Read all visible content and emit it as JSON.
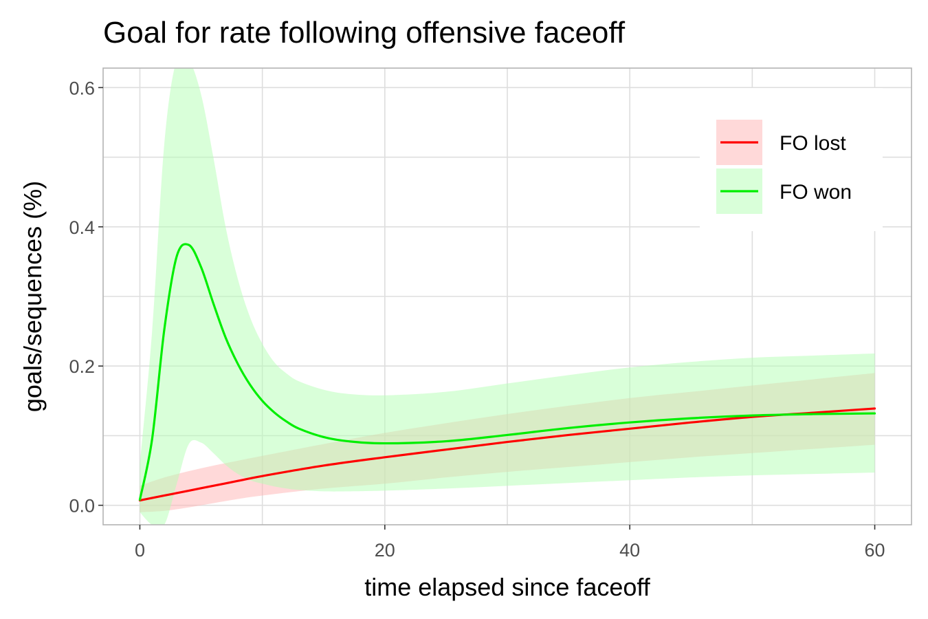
{
  "chart_data": {
    "type": "line",
    "title": "Goal for rate following offensive faceoff",
    "xlabel": "time elapsed since faceoff",
    "ylabel": "goals/sequences (%)",
    "xlim": [
      -3,
      63
    ],
    "ylim": [
      -0.028,
      0.628
    ],
    "xticks": [
      0,
      20,
      40,
      60
    ],
    "xtick_labels": [
      "0",
      "20",
      "40",
      "60"
    ],
    "yticks": [
      0.0,
      0.2,
      0.4,
      0.6
    ],
    "ytick_labels": [
      "0.0",
      "0.2",
      "0.4",
      "0.6"
    ],
    "grid": true,
    "legend_position": "top-right",
    "series": [
      {
        "name": "FO lost",
        "color": "#ff0000",
        "band_color": "#ffb3b3",
        "x": [
          0,
          2,
          4,
          6,
          8,
          10,
          15,
          20,
          25,
          30,
          35,
          40,
          45,
          50,
          55,
          60
        ],
        "y": [
          0.007,
          0.014,
          0.021,
          0.028,
          0.035,
          0.042,
          0.057,
          0.069,
          0.08,
          0.091,
          0.101,
          0.11,
          0.119,
          0.127,
          0.133,
          0.139
        ],
        "lower": [
          -0.01,
          -0.008,
          -0.003,
          0.003,
          0.009,
          0.014,
          0.024,
          0.031,
          0.04,
          0.048,
          0.055,
          0.062,
          0.069,
          0.075,
          0.081,
          0.087
        ],
        "upper": [
          0.028,
          0.04,
          0.049,
          0.057,
          0.064,
          0.071,
          0.088,
          0.104,
          0.118,
          0.131,
          0.143,
          0.154,
          0.163,
          0.172,
          0.181,
          0.19
        ]
      },
      {
        "name": "FO won",
        "color": "#00ee00",
        "band_color": "#b3ffb3",
        "x": [
          0,
          1,
          2,
          3,
          4,
          5,
          6,
          7,
          8,
          9,
          10,
          11,
          12,
          13,
          15,
          17,
          20,
          25,
          30,
          35,
          40,
          45,
          50,
          55,
          60
        ],
        "y": [
          0.008,
          0.095,
          0.253,
          0.357,
          0.374,
          0.342,
          0.29,
          0.241,
          0.203,
          0.173,
          0.15,
          0.133,
          0.12,
          0.11,
          0.098,
          0.092,
          0.089,
          0.092,
          0.101,
          0.111,
          0.119,
          0.125,
          0.129,
          0.131,
          0.132
        ],
        "lower": [
          -0.01,
          -0.028,
          -0.028,
          0.03,
          0.088,
          0.09,
          0.075,
          0.058,
          0.045,
          0.036,
          0.031,
          0.027,
          0.024,
          0.022,
          0.02,
          0.02,
          0.021,
          0.024,
          0.028,
          0.032,
          0.036,
          0.04,
          0.043,
          0.045,
          0.047
        ],
        "upper": [
          0.06,
          0.25,
          0.52,
          0.64,
          0.64,
          0.59,
          0.5,
          0.4,
          0.325,
          0.27,
          0.232,
          0.205,
          0.189,
          0.178,
          0.166,
          0.16,
          0.158,
          0.163,
          0.175,
          0.187,
          0.198,
          0.206,
          0.212,
          0.215,
          0.218
        ]
      }
    ]
  }
}
